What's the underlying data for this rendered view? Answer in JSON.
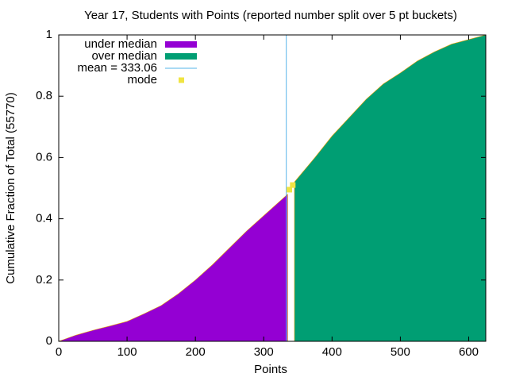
{
  "chart_data": {
    "type": "area",
    "title": "Year 17, Students with Points (reported number split over 5 pt buckets)",
    "xlabel": "Points",
    "ylabel": "Cumulative Fraction of Total (55770)",
    "xlim": [
      0,
      625
    ],
    "ylim": [
      0,
      1
    ],
    "xticks": [
      0,
      100,
      200,
      300,
      400,
      500,
      600
    ],
    "yticks": [
      0,
      0.2,
      0.4,
      0.6,
      0.8,
      1
    ],
    "series": [
      {
        "name": "under median",
        "color": "#9400d3",
        "x": [
          0,
          25,
          50,
          75,
          100,
          125,
          150,
          175,
          200,
          225,
          250,
          275,
          300,
          325,
          335
        ],
        "values": [
          0,
          0.02,
          0.036,
          0.05,
          0.065,
          0.09,
          0.117,
          0.155,
          0.2,
          0.25,
          0.305,
          0.36,
          0.41,
          0.46,
          0.48
        ]
      },
      {
        "name": "over median",
        "color": "#009e73",
        "x": [
          345,
          375,
          400,
          425,
          450,
          475,
          500,
          525,
          550,
          575,
          600,
          625
        ],
        "values": [
          0.52,
          0.6,
          0.67,
          0.73,
          0.79,
          0.84,
          0.876,
          0.915,
          0.945,
          0.97,
          0.985,
          1.0
        ]
      },
      {
        "name": "mean = 333.06",
        "type": "vline",
        "color": "#56b4e9",
        "value": 333.06
      },
      {
        "name": "mode",
        "type": "points",
        "color": "#f0e442",
        "x": [
          337.5,
          342.5
        ],
        "values": [
          0.495,
          0.51
        ]
      }
    ]
  }
}
